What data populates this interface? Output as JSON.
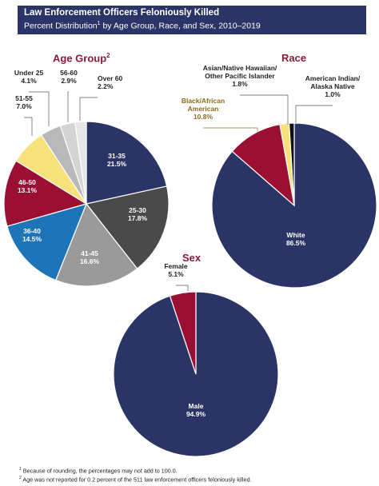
{
  "header": {
    "title": "Law Enforcement Officers Feloniously Killed",
    "subtitle_pre": "Percent Distribution",
    "subtitle_sup": "1",
    "subtitle_post": " by Age Group, Race, and Sex, 2010–2019"
  },
  "colors": {
    "header_bg": "#2b3466",
    "section_title": "#8b1a3a",
    "navy": "#2b3466",
    "dark_gray": "#4a4a4a",
    "gray": "#9a9a9a",
    "blue": "#1e74b9",
    "crimson": "#9b0f34",
    "yellow": "#f7e27a",
    "light_gray": "#b9b9b9",
    "lighter_gray": "#d4d4d4",
    "pale_gray": "#e6e6e6",
    "black": "#111111"
  },
  "chart_data": [
    {
      "type": "pie",
      "title": "Age Group",
      "title_sup": "2",
      "slices": [
        {
          "label": "31-35",
          "value": 21.5,
          "color": "#2b3466",
          "label_lines": [
            "31-35",
            "21.5%"
          ]
        },
        {
          "label": "25-30",
          "value": 17.8,
          "color": "#4a4a4a",
          "label_lines": [
            "25-30",
            "17.8%"
          ]
        },
        {
          "label": "41-45",
          "value": 16.6,
          "color": "#9a9a9a",
          "label_lines": [
            "41-45",
            "16.6%"
          ]
        },
        {
          "label": "36-40",
          "value": 14.5,
          "color": "#1e74b9",
          "label_lines": [
            "36-40",
            "14.5%"
          ]
        },
        {
          "label": "46-50",
          "value": 13.1,
          "color": "#9b0f34",
          "label_lines": [
            "46-50",
            "13.1%"
          ]
        },
        {
          "label": "51-55",
          "value": 7.0,
          "color": "#f7e27a",
          "label_lines": [
            "51-55",
            "7.0%"
          ]
        },
        {
          "label": "Under 25",
          "value": 4.1,
          "color": "#b9b9b9",
          "label_lines": [
            "Under 25",
            "4.1%"
          ]
        },
        {
          "label": "56-60",
          "value": 2.9,
          "color": "#d4d4d4",
          "label_lines": [
            "56-60",
            "2.9%"
          ]
        },
        {
          "label": "Over 60",
          "value": 2.2,
          "color": "#e6e6e6",
          "label_lines": [
            "Over 60",
            "2.2%"
          ]
        }
      ]
    },
    {
      "type": "pie",
      "title": "Race",
      "slices": [
        {
          "label": "White",
          "value": 86.5,
          "color": "#2b3466",
          "label_lines": [
            "White",
            "86.5%"
          ]
        },
        {
          "label": "Black/African American",
          "value": 10.8,
          "color": "#9b0f34",
          "label_lines": [
            "Black/African",
            "American",
            "10.8%"
          ]
        },
        {
          "label": "Asian/Native Hawaiian/Other Pacific Islander",
          "value": 1.8,
          "color": "#f7e27a",
          "label_lines": [
            "Asian/Native Hawaiian/",
            "Other Pacific Islander",
            "1.8%"
          ]
        },
        {
          "label": "American Indian/Alaska Native",
          "value": 1.0,
          "color": "#111111",
          "label_lines": [
            "American Indian/",
            "Alaska Native",
            "1.0%"
          ]
        }
      ]
    },
    {
      "type": "pie",
      "title": "Sex",
      "slices": [
        {
          "label": "Male",
          "value": 94.9,
          "color": "#2b3466",
          "label_lines": [
            "Male",
            "94.9%"
          ]
        },
        {
          "label": "Female",
          "value": 5.1,
          "color": "#9b0f34",
          "label_lines": [
            "Female",
            "5.1%"
          ]
        }
      ]
    }
  ],
  "footnotes": [
    {
      "sup": "1",
      "text": " Because of rounding, the percentages may not add to 100.0."
    },
    {
      "sup": "2",
      "text": " Age was not reported for 0.2 percent of the 511 law enforcement officers feloniously killed."
    }
  ]
}
